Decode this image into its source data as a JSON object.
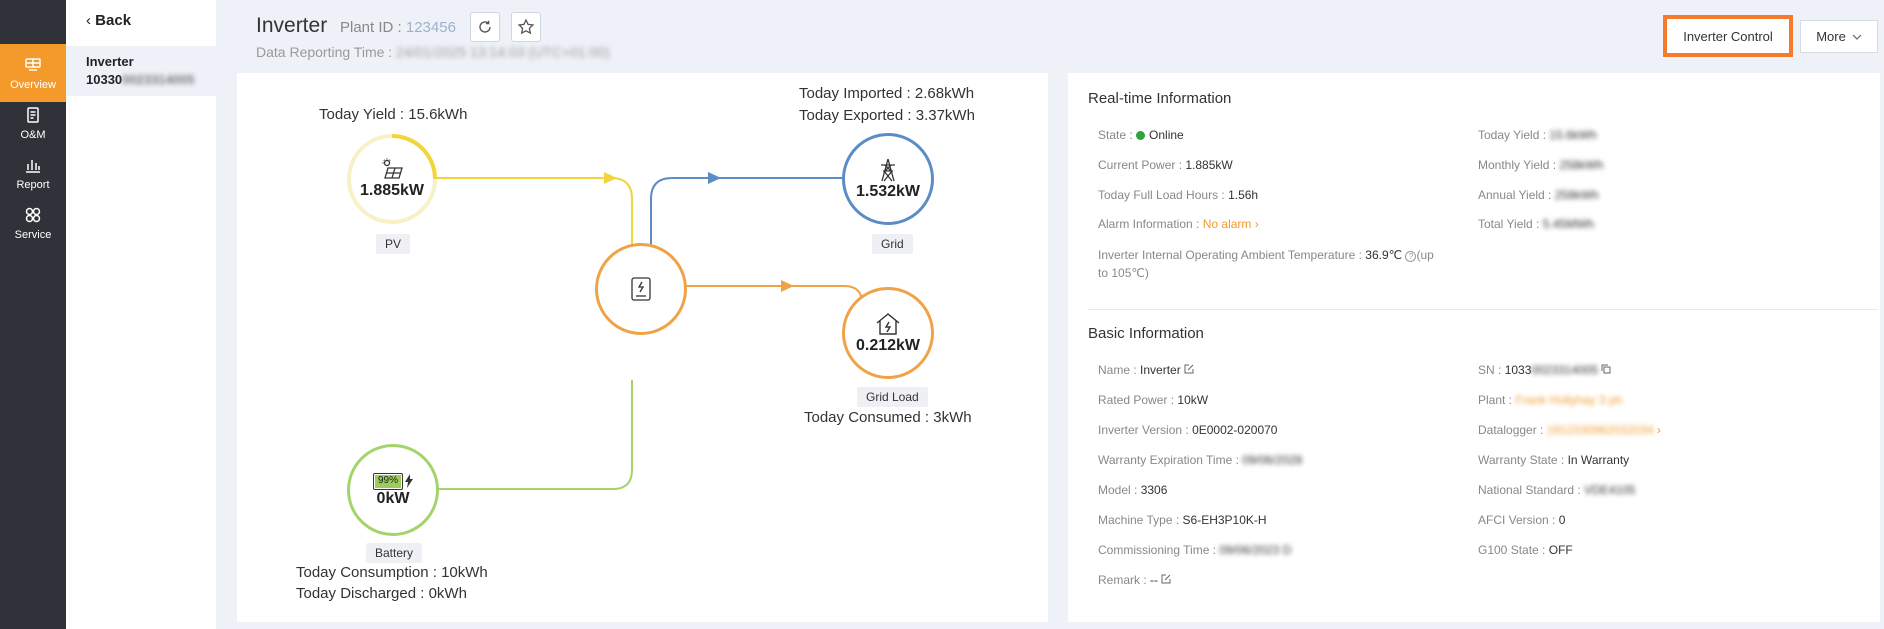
{
  "nav": [
    {
      "label": "Overview",
      "icon": "overview-icon",
      "active": true
    },
    {
      "label": "O&M",
      "icon": "om-icon"
    },
    {
      "label": "Report",
      "icon": "report-icon"
    },
    {
      "label": "Service",
      "icon": "service-icon"
    }
  ],
  "sidebar": {
    "back_label": "Back",
    "device_name": "Inverter",
    "device_sn_visible": "10330",
    "device_sn_blur": "0023314005"
  },
  "header": {
    "title": "Inverter",
    "plant_id_label": "Plant ID :",
    "plant_id_value": "123456",
    "reporting_label": "Data Reporting Time :",
    "reporting_value": "24/01/2025 13:14:03 (UTC+01:00)",
    "control_button": "Inverter Control",
    "more_button": "More"
  },
  "flow": {
    "today_yield": "Today Yield :  15.6kWh",
    "today_imported": "Today Imported :  2.68kWh",
    "today_exported": "Today Exported :  3.37kWh",
    "pv_power": "1.885kW",
    "pv_label": "PV",
    "grid_power": "1.532kW",
    "grid_label": "Grid",
    "load_power": "0.212kW",
    "load_label": "Grid Load",
    "today_consumed": "Today Consumed :  3kWh",
    "battery_soc": "99%",
    "battery_power": "0kW",
    "battery_label": "Battery",
    "today_consumption": "Today Consumption :  10kWh",
    "today_discharged": "Today Discharged :  0kWh",
    "colors": {
      "pv": "#f2d43b",
      "grid": "#5b8cc4",
      "inverter": "#f0a346",
      "load": "#f0a346",
      "battery": "#a5d36b"
    }
  },
  "realtime": {
    "title": "Real-time Information",
    "state_label": "State :",
    "state_value": "Online",
    "current_power_label": "Current Power :",
    "current_power_value": "1.885kW",
    "full_load_label": "Today Full Load Hours :",
    "full_load_value": "1.56h",
    "alarm_label": "Alarm Information :",
    "alarm_value": "No alarm",
    "temp_label": "Inverter Internal Operating Ambient Temperature :",
    "temp_value": "36.9℃",
    "temp_note_1": "(up",
    "temp_note_2": "to 105℃)",
    "today_yield_label": "Today Yield :",
    "today_yield_value": "15.6kWh",
    "monthly_yield_label": "Monthly Yield :",
    "monthly_yield_value": "258kWh",
    "annual_yield_label": "Annual Yield :",
    "annual_yield_value": "258kWh",
    "total_yield_label": "Total Yield :",
    "total_yield_value": "5.45MWh"
  },
  "basic": {
    "title": "Basic Information",
    "name_label": "Name :",
    "name_value": "Inverter",
    "rated_label": "Rated Power :",
    "rated_value": "10kW",
    "version_label": "Inverter Version :",
    "version_value": "0E0002-020070",
    "warranty_exp_label": "Warranty Expiration Time :",
    "warranty_exp_value": "09/06/2028",
    "model_label": "Model :",
    "model_value": "3306",
    "machine_label": "Machine Type :",
    "machine_value": "S6-EH3P10K-H",
    "commission_label": "Commissioning Time :",
    "commission_value": "09/06/2023 D",
    "remark_label": "Remark :",
    "remark_value": "--",
    "sn_label": "SN :",
    "sn_visible": "1033",
    "sn_blur": "0023314005",
    "plant_label": "Plant :",
    "plant_value": "Frank Hollyhay 3 ph",
    "datalogger_label": "Datalogger :",
    "datalogger_value": "1912330962032034",
    "warranty_state_label": "Warranty State :",
    "warranty_state_value": "In Warranty",
    "national_label": "National Standard :",
    "national_value": "VDE4105",
    "afci_label": "AFCI Version :",
    "afci_value": "0",
    "g100_label": "G100 State :",
    "g100_value": "OFF"
  }
}
